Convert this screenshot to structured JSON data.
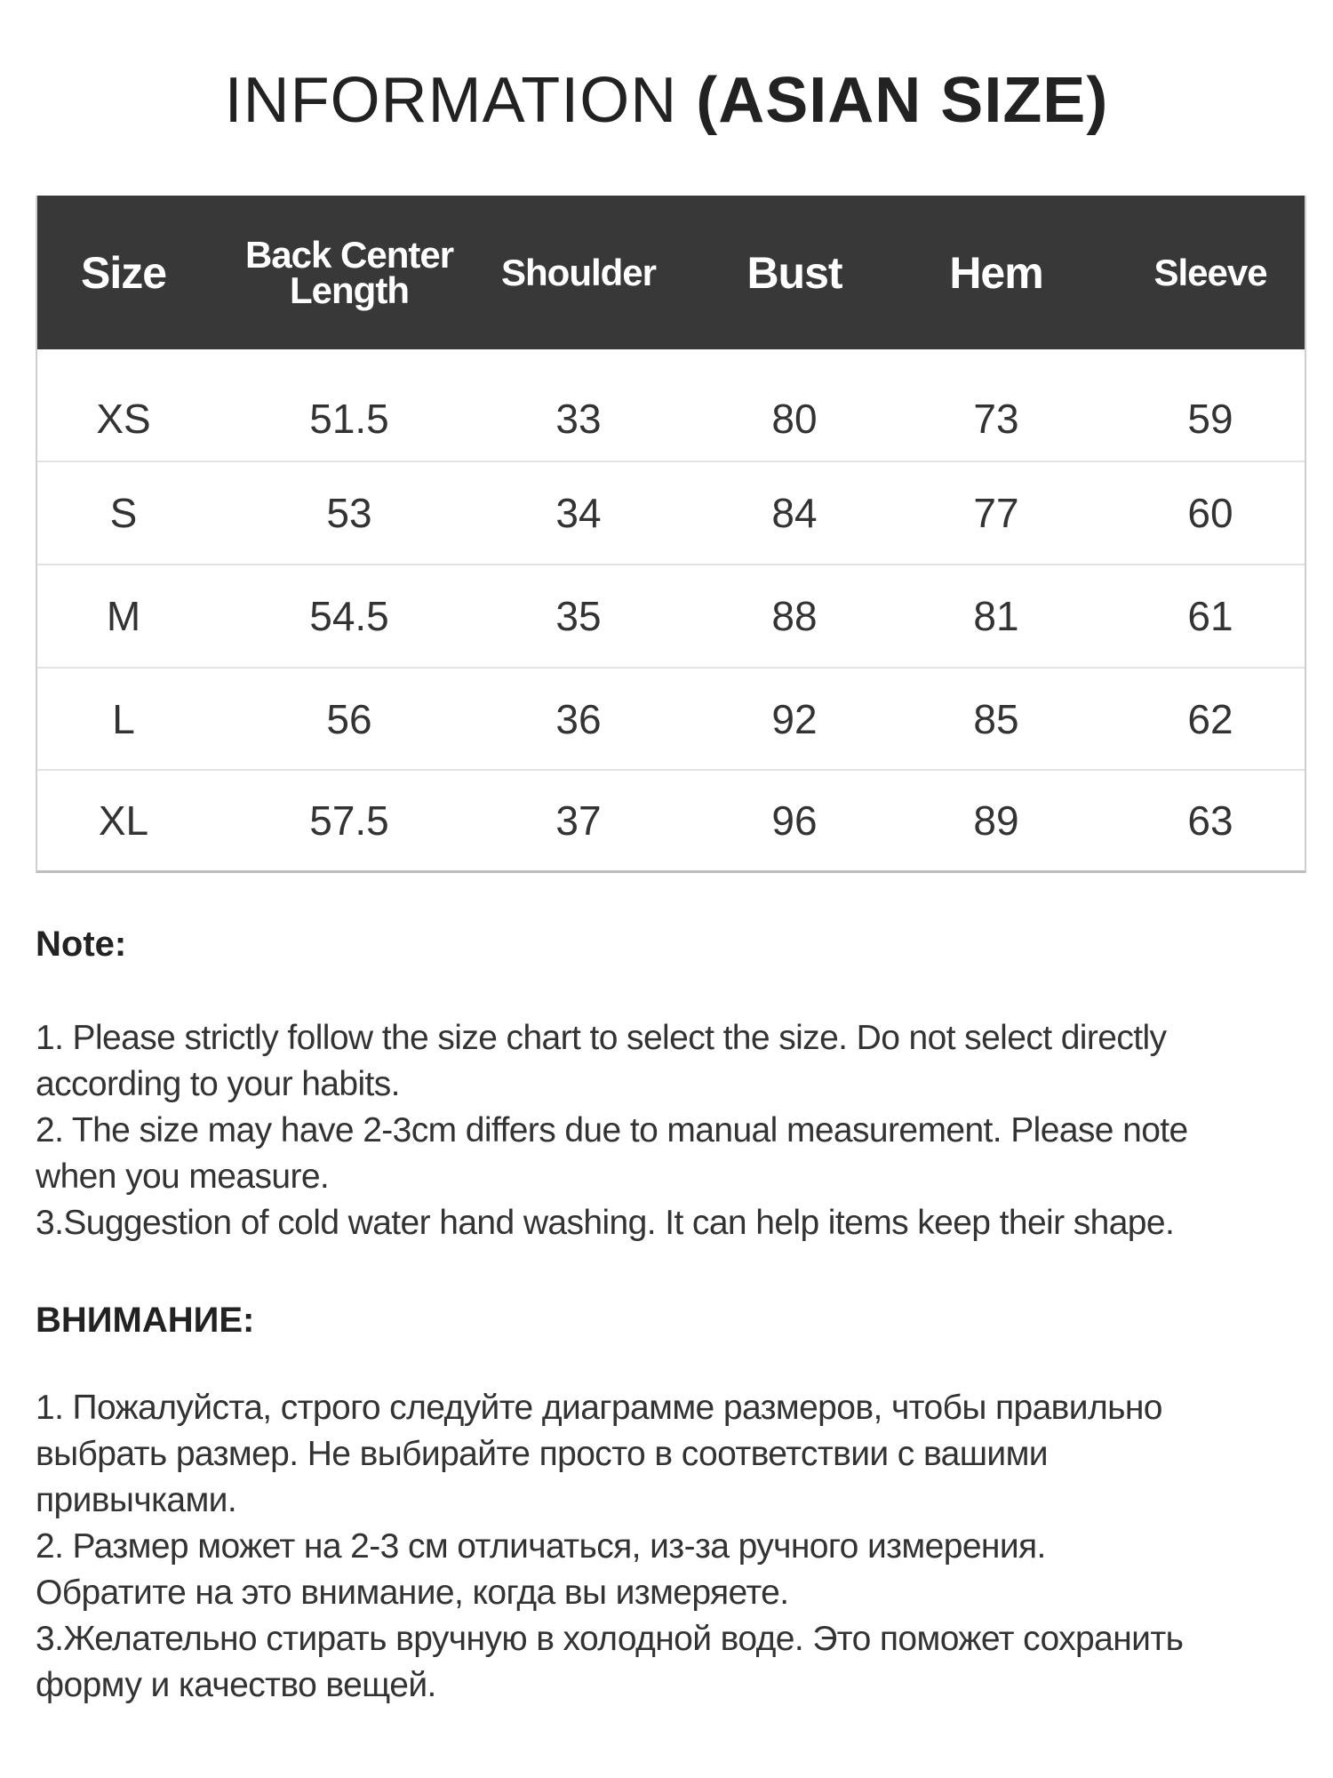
{
  "title": {
    "light": "INFORMATION ",
    "bold": "(ASIAN SIZE)"
  },
  "table": {
    "headers": [
      "Size",
      "Back Center Length",
      "Shoulder",
      "Bust",
      "Hem",
      "Sleeve"
    ],
    "header_lines": {
      "back_center_1": "Back Center",
      "back_center_2": "Length"
    },
    "rows": [
      [
        "XS",
        "51.5",
        "33",
        "80",
        "73",
        "59"
      ],
      [
        "S",
        "53",
        "34",
        "84",
        "77",
        "60"
      ],
      [
        "M",
        "54.5",
        "35",
        "88",
        "81",
        "61"
      ],
      [
        "L",
        "56",
        "36",
        "92",
        "85",
        "62"
      ],
      [
        "XL",
        "57.5",
        "37",
        "96",
        "89",
        "63"
      ]
    ],
    "header_bg": "#383838"
  },
  "note": {
    "title": "Note:",
    "lines": [
      "1. Please strictly follow the size chart  to select the size. Do not select directly",
      "according to your habits.",
      "2. The size may have 2-3cm differs due to manual measurement. Please note",
      "when you measure.",
      "3.Suggestion of cold water hand washing. It can help items keep their shape."
    ]
  },
  "attention": {
    "title": "ВНИМАНИЕ:",
    "lines": [
      "1. Пожалуйста, строго следуйте диаграмме размеров, чтобы правильно",
      "выбрать размер. Не выбирайте просто в соответствии с вашими",
      "привычками.",
      "2. Размер может на 2-3 см отличаться, из-за ручного измерения.",
      "Обратите на это внимание, когда вы измеряете.",
      "3.Желательно стирать вручную в холодной воде. Это поможет сохранить",
      "форму и качество вещей."
    ]
  }
}
